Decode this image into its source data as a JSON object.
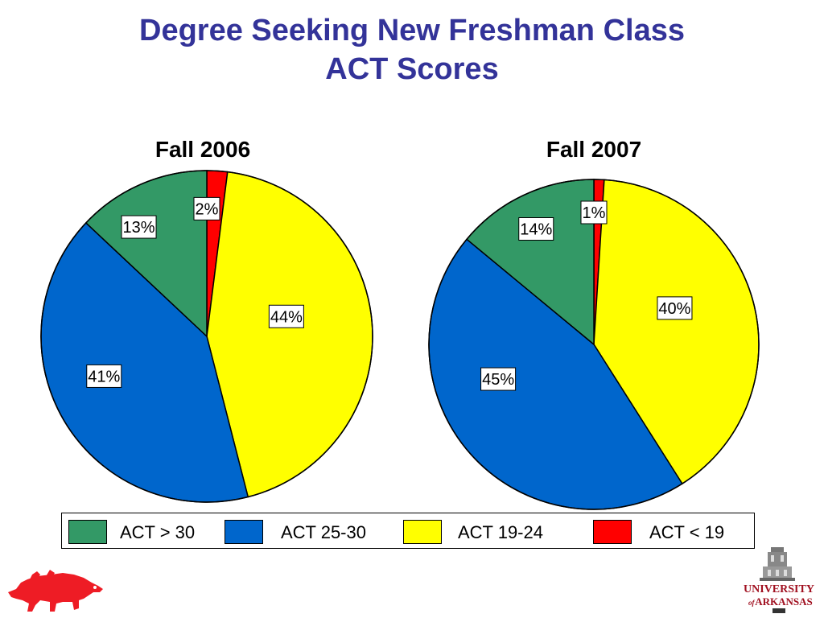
{
  "title_line1": "Degree Seeking New Freshman Class",
  "title_line2": "ACT Scores",
  "colors": {
    "title": "#333399",
    "green": "#339966",
    "blue": "#0066cc",
    "yellow": "#ffff00",
    "red": "#ff0000"
  },
  "chart_data": [
    {
      "type": "pie",
      "title": "Fall 2006",
      "slices": [
        {
          "label": "ACT < 19",
          "value": 2,
          "display": "2%",
          "color": "#ff0000"
        },
        {
          "label": "ACT 19-24",
          "value": 44,
          "display": "44%",
          "color": "#ffff00"
        },
        {
          "label": "ACT 25-30",
          "value": 41,
          "display": "41%",
          "color": "#0066cc"
        },
        {
          "label": "ACT > 30",
          "value": 13,
          "display": "13%",
          "color": "#339966"
        }
      ]
    },
    {
      "type": "pie",
      "title": "Fall 2007",
      "slices": [
        {
          "label": "ACT < 19",
          "value": 1,
          "display": "1%",
          "color": "#ff0000"
        },
        {
          "label": "ACT 19-24",
          "value": 40,
          "display": "40%",
          "color": "#ffff00"
        },
        {
          "label": "ACT 25-30",
          "value": 45,
          "display": "45%",
          "color": "#0066cc"
        },
        {
          "label": "ACT > 30",
          "value": 14,
          "display": "14%",
          "color": "#339966"
        }
      ]
    }
  ],
  "legend": [
    {
      "label": "ACT > 30",
      "color": "#339966"
    },
    {
      "label": "ACT 25-30",
      "color": "#0066cc"
    },
    {
      "label": "ACT 19-24",
      "color": "#ffff00"
    },
    {
      "label": "ACT < 19",
      "color": "#ff0000"
    }
  ],
  "logo": {
    "line1": "UNIVERSITY",
    "of": "of",
    "line2": "ARKANSAS",
    "icon_left": "razorback-hog-icon",
    "icon_right": "old-main-building-icon"
  }
}
